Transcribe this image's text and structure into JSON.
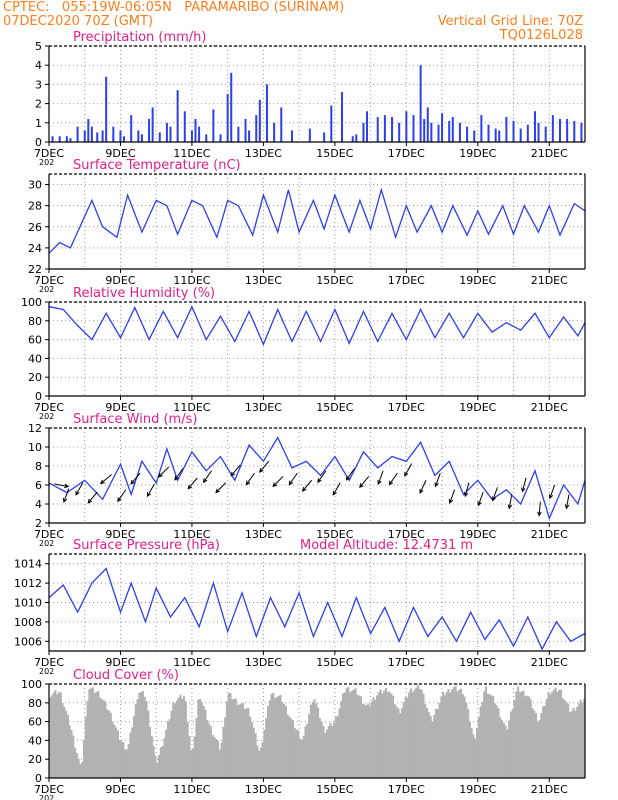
{
  "header": {
    "line1": "CPTEC:   055:19W-06:05N   PARAMARIBO (SURINAM)",
    "line2": "07DEC2020 70Z (GMT)",
    "grid_note": "Vertical Grid Line: 70Z",
    "code": "TQ0126L028"
  },
  "colors": {
    "header": "#ff7f1e",
    "title": "#e0208a",
    "series": "#2c3ff0",
    "arrows": "#000000",
    "cloud": "#b2b2b2",
    "grid": "#999999"
  },
  "x_axis": {
    "start": "07DEC2020",
    "end": "22DEC2020",
    "ticks": [
      {
        "day": 7,
        "label": "7DEC"
      },
      {
        "day": 9,
        "label": "9DEC"
      },
      {
        "day": 11,
        "label": "11DEC"
      },
      {
        "day": 13,
        "label": "13DEC"
      },
      {
        "day": 15,
        "label": "15DEC"
      },
      {
        "day": 17,
        "label": "17DEC"
      },
      {
        "day": 19,
        "label": "19DEC"
      },
      {
        "day": 21,
        "label": "21DEC"
      }
    ],
    "year_cut": "202"
  },
  "chart_data": [
    {
      "id": "precip",
      "type": "bar",
      "title": "Precipitation (mm/h)",
      "ylim": [
        0,
        5
      ],
      "yticks": [
        "0",
        "1",
        "2",
        "3",
        "4",
        "5"
      ],
      "series": {
        "x": [
          7.1,
          7.3,
          7.5,
          7.6,
          7.8,
          8.0,
          8.1,
          8.2,
          8.35,
          8.5,
          8.6,
          8.8,
          9.0,
          9.1,
          9.3,
          9.5,
          9.6,
          9.8,
          9.9,
          10.1,
          10.3,
          10.4,
          10.6,
          10.8,
          11.0,
          11.1,
          11.2,
          11.4,
          11.6,
          11.8,
          12.0,
          12.1,
          12.3,
          12.5,
          12.6,
          12.8,
          12.9,
          13.1,
          13.3,
          13.5,
          13.8,
          14.3,
          14.7,
          14.9,
          15.2,
          15.5,
          15.6,
          15.8,
          15.9,
          16.2,
          16.4,
          16.6,
          16.8,
          17.0,
          17.2,
          17.4,
          17.5,
          17.6,
          17.7,
          17.9,
          18.0,
          18.2,
          18.3,
          18.5,
          18.7,
          18.9,
          19.1,
          19.3,
          19.5,
          19.6,
          19.8,
          20.0,
          20.2,
          20.4,
          20.6,
          20.7,
          20.9,
          21.1,
          21.3,
          21.5,
          21.7,
          21.9
        ],
        "values": [
          0.3,
          0.3,
          0.3,
          0.2,
          0.8,
          0.6,
          1.2,
          0.8,
          0.5,
          0.6,
          3.4,
          0.8,
          0.6,
          0.3,
          1.4,
          0.6,
          0.4,
          1.2,
          1.8,
          0.5,
          1.0,
          0.8,
          2.7,
          1.6,
          0.6,
          1.2,
          0.8,
          0.4,
          1.7,
          0.4,
          2.5,
          3.6,
          0.8,
          1.2,
          0.6,
          1.4,
          2.2,
          3.0,
          1.0,
          1.8,
          0.6,
          0.7,
          0.5,
          1.9,
          2.6,
          0.3,
          0.4,
          1.0,
          1.6,
          1.3,
          1.4,
          1.3,
          1.0,
          1.6,
          1.4,
          4.0,
          1.2,
          1.8,
          1.0,
          0.9,
          1.5,
          1.1,
          1.3,
          1.0,
          0.8,
          0.6,
          1.4,
          0.9,
          0.7,
          0.6,
          1.3,
          1.1,
          0.7,
          0.9,
          1.6,
          1.0,
          0.8,
          1.4,
          1.2,
          1.2,
          1.1,
          1.0
        ]
      }
    },
    {
      "id": "temp",
      "type": "line",
      "title": "Surface Temperature (nC)",
      "ylim": [
        22,
        31
      ],
      "yticks": [
        "22",
        "24",
        "26",
        "28",
        "30"
      ],
      "series": {
        "x": [
          7.0,
          7.3,
          7.6,
          8.2,
          8.5,
          8.9,
          9.2,
          9.6,
          10.0,
          10.3,
          10.6,
          11.0,
          11.3,
          11.7,
          12.0,
          12.3,
          12.7,
          13.0,
          13.4,
          13.7,
          14.0,
          14.4,
          14.7,
          15.0,
          15.4,
          15.7,
          16.0,
          16.3,
          16.7,
          17.0,
          17.3,
          17.7,
          18.0,
          18.3,
          18.7,
          19.0,
          19.3,
          19.7,
          20.0,
          20.3,
          20.7,
          21.0,
          21.3,
          21.7,
          22.0
        ],
        "values": [
          23.5,
          24.5,
          24.0,
          28.5,
          26.0,
          25.0,
          29.0,
          25.5,
          28.5,
          28.0,
          25.3,
          28.5,
          28.0,
          25.0,
          28.5,
          28.0,
          25.2,
          29.0,
          25.5,
          29.5,
          25.5,
          28.5,
          25.8,
          29.0,
          25.5,
          28.5,
          25.8,
          29.5,
          25.0,
          28.0,
          25.5,
          28.0,
          25.5,
          28.0,
          25.2,
          27.5,
          25.3,
          28.0,
          25.3,
          28.0,
          25.5,
          28.0,
          25.2,
          28.2,
          27.5
        ]
      }
    },
    {
      "id": "rh",
      "type": "line",
      "title": "Relative Humidity (%)",
      "ylim": [
        0,
        100
      ],
      "yticks": [
        "0",
        "20",
        "40",
        "60",
        "80",
        "100"
      ],
      "series": {
        "x": [
          7.0,
          7.4,
          7.8,
          8.2,
          8.6,
          9.0,
          9.4,
          9.8,
          10.2,
          10.6,
          11.0,
          11.4,
          11.8,
          12.2,
          12.6,
          13.0,
          13.4,
          13.8,
          14.2,
          14.6,
          15.0,
          15.4,
          15.8,
          16.2,
          16.6,
          17.0,
          17.4,
          17.8,
          18.2,
          18.6,
          19.0,
          19.4,
          19.8,
          20.2,
          20.6,
          21.0,
          21.4,
          21.8,
          22.0
        ],
        "values": [
          95,
          92,
          75,
          60,
          88,
          62,
          94,
          60,
          90,
          62,
          95,
          60,
          85,
          58,
          90,
          55,
          92,
          58,
          90,
          58,
          92,
          56,
          90,
          58,
          88,
          60,
          92,
          62,
          88,
          62,
          88,
          68,
          78,
          70,
          88,
          62,
          84,
          64,
          78
        ]
      }
    },
    {
      "id": "wind",
      "type": "line",
      "title": "Surface Wind (m/s)",
      "ylim": [
        2,
        12
      ],
      "yticks": [
        "2",
        "4",
        "6",
        "8",
        "10",
        "12"
      ],
      "series": {
        "x": [
          7.0,
          7.5,
          8.0,
          8.5,
          9.0,
          9.3,
          9.6,
          10.0,
          10.3,
          10.6,
          11.0,
          11.4,
          11.8,
          12.2,
          12.6,
          13.0,
          13.4,
          13.8,
          14.2,
          14.6,
          15.0,
          15.4,
          15.8,
          16.2,
          16.6,
          17.0,
          17.4,
          17.8,
          18.2,
          18.6,
          19.0,
          19.4,
          19.8,
          20.2,
          20.6,
          21.0,
          21.4,
          21.8,
          22.0
        ],
        "values": [
          6.2,
          5.2,
          6.5,
          4.5,
          8.2,
          5.0,
          8.5,
          6.2,
          9.8,
          6.5,
          9.5,
          7.5,
          9.0,
          6.5,
          10.2,
          8.5,
          11.0,
          7.8,
          8.5,
          7.0,
          9.0,
          6.5,
          9.5,
          7.8,
          9.0,
          8.5,
          10.5,
          7.0,
          8.5,
          5.0,
          6.5,
          4.5,
          5.5,
          4.0,
          7.5,
          2.5,
          6.0,
          4.0,
          6.5
        ]
      },
      "arrows_deg": [
        100,
        200,
        210,
        220,
        230,
        215,
        220,
        210,
        225,
        215,
        220,
        215,
        225,
        220,
        215,
        220,
        225,
        215,
        220,
        215,
        210,
        215,
        220,
        200,
        215,
        210,
        205,
        200,
        200,
        195,
        200,
        200,
        190,
        195,
        185,
        200,
        190
      ]
    },
    {
      "id": "pres",
      "type": "line",
      "title": "Surface Pressure (hPa)",
      "ylim": [
        1005,
        1015
      ],
      "yticks": [
        "1006",
        "1008",
        "1010",
        "1012",
        "1014"
      ],
      "series": {
        "x": [
          7.0,
          7.4,
          7.8,
          8.2,
          8.6,
          9.0,
          9.3,
          9.7,
          10.0,
          10.4,
          10.8,
          11.2,
          11.6,
          12.0,
          12.4,
          12.8,
          13.2,
          13.6,
          14.0,
          14.4,
          14.8,
          15.2,
          15.6,
          16.0,
          16.4,
          16.8,
          17.2,
          17.6,
          18.0,
          18.4,
          18.8,
          19.2,
          19.6,
          20.0,
          20.4,
          20.8,
          21.2,
          21.6,
          22.0
        ],
        "values": [
          1010.5,
          1011.8,
          1009.0,
          1012.0,
          1013.5,
          1009.0,
          1012.0,
          1008.0,
          1011.5,
          1008.5,
          1010.5,
          1007.5,
          1012.0,
          1007.0,
          1011.0,
          1006.5,
          1010.5,
          1007.5,
          1011.0,
          1006.5,
          1010.0,
          1006.5,
          1010.5,
          1006.8,
          1009.5,
          1006.0,
          1009.5,
          1006.5,
          1008.5,
          1006.0,
          1009.0,
          1006.2,
          1008.2,
          1005.5,
          1008.5,
          1005.2,
          1008.0,
          1006.0,
          1006.8
        ]
      },
      "note": "Model Altitude: 12.4731 m"
    },
    {
      "id": "cloud",
      "type": "area",
      "title": "Cloud Cover (%)",
      "ylim": [
        0,
        100
      ],
      "yticks": [
        "0",
        "20",
        "40",
        "60",
        "80",
        "100"
      ],
      "series": {
        "x": [
          7.0,
          7.3,
          7.6,
          7.9,
          8.1,
          8.4,
          8.7,
          9.0,
          9.2,
          9.5,
          9.7,
          10.0,
          10.2,
          10.5,
          10.8,
          11.0,
          11.2,
          11.5,
          11.8,
          12.0,
          12.3,
          12.6,
          12.9,
          13.2,
          13.5,
          13.8,
          14.1,
          14.4,
          14.7,
          15.0,
          15.3,
          15.6,
          15.9,
          16.2,
          16.5,
          16.8,
          17.1,
          17.4,
          17.7,
          18.0,
          18.3,
          18.6,
          18.9,
          19.2,
          19.5,
          19.8,
          20.1,
          20.4,
          20.7,
          21.0,
          21.3,
          21.6,
          22.0
        ],
        "values": [
          88,
          92,
          55,
          8,
          96,
          90,
          70,
          40,
          30,
          92,
          88,
          15,
          40,
          82,
          88,
          20,
          90,
          55,
          30,
          90,
          80,
          72,
          25,
          90,
          85,
          60,
          40,
          88,
          50,
          60,
          96,
          92,
          75,
          90,
          95,
          70,
          93,
          97,
          60,
          88,
          96,
          92,
          40,
          97,
          80,
          50,
          95,
          88,
          60,
          92,
          94,
          70,
          85
        ]
      }
    }
  ]
}
